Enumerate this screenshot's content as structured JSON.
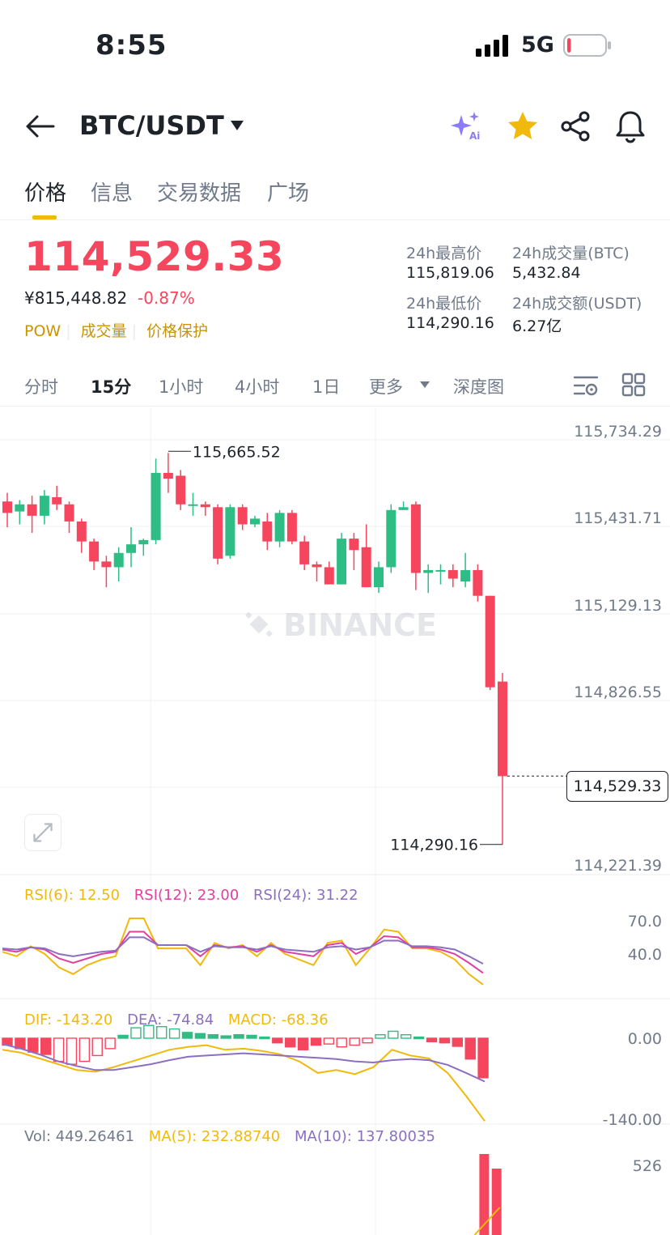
{
  "status_bar": {
    "time": "8:55",
    "network": "5G",
    "battery_level": 0.1
  },
  "header": {
    "pair": "BTC/USDT"
  },
  "tabs": [
    "价格",
    "信息",
    "交易数据",
    "广场"
  ],
  "price": {
    "last": "114,529.33",
    "cny": "¥815,448.82",
    "change": "-0.87%",
    "tags": [
      "POW",
      "成交量",
      "价格保护"
    ]
  },
  "stats": [
    {
      "label": "24h最高价",
      "value": "115,819.06"
    },
    {
      "label": "24h成交量(BTC)",
      "value": "5,432.84"
    },
    {
      "label": "24h最低价",
      "value": "114,290.16"
    },
    {
      "label": "24h成交额(USDT)",
      "value": "6.27亿"
    }
  ],
  "intervals": [
    "分时",
    "15分",
    "1小时",
    "4小时",
    "1日",
    "更多",
    "深度图"
  ],
  "chart_data": {
    "type": "candlestick",
    "watermark": "BINANCE",
    "price_axis": [
      "115,734.29",
      "115,431.71",
      "115,129.13",
      "114,826.55",
      "114,523.97",
      "114,221.39"
    ],
    "high_marker": "115,665.52",
    "low_marker": "114,290.16",
    "last_price_tag": "114,529.33",
    "candles": [
      [
        115490,
        115520,
        115400,
        115450
      ],
      [
        115455,
        115495,
        115410,
        115480
      ],
      [
        115480,
        115510,
        115380,
        115440
      ],
      [
        115440,
        115530,
        115410,
        115510
      ],
      [
        115505,
        115545,
        115460,
        115480
      ],
      [
        115480,
        115490,
        115380,
        115420
      ],
      [
        115420,
        115430,
        115310,
        115350
      ],
      [
        115350,
        115360,
        115250,
        115280
      ],
      [
        115280,
        115300,
        115190,
        115260
      ],
      [
        115260,
        115330,
        115210,
        115310
      ],
      [
        115310,
        115400,
        115260,
        115340
      ],
      [
        115340,
        115360,
        115300,
        115355
      ],
      [
        115355,
        115640,
        115340,
        115590
      ],
      [
        115590,
        115660,
        115520,
        115570
      ],
      [
        115580,
        115600,
        115460,
        115480
      ],
      [
        115480,
        115520,
        115440,
        115480
      ],
      [
        115480,
        115490,
        115440,
        115470
      ],
      [
        115470,
        115480,
        115270,
        115290
      ],
      [
        115300,
        115480,
        115290,
        115470
      ],
      [
        115470,
        115480,
        115390,
        115410
      ],
      [
        115410,
        115440,
        115400,
        115430
      ],
      [
        115420,
        115450,
        115320,
        115350
      ],
      [
        115350,
        115460,
        115330,
        115450
      ],
      [
        115450,
        115460,
        115340,
        115350
      ],
      [
        115350,
        115370,
        115250,
        115270
      ],
      [
        115270,
        115280,
        115210,
        115260
      ],
      [
        115260,
        115280,
        115200,
        115200
      ],
      [
        115200,
        115380,
        115200,
        115360
      ],
      [
        115360,
        115380,
        115250,
        115320
      ],
      [
        115330,
        115410,
        115190,
        115190
      ],
      [
        115190,
        115280,
        115170,
        115260
      ],
      [
        115260,
        115480,
        115240,
        115460
      ],
      [
        115460,
        115490,
        115470,
        115470
      ],
      [
        115480,
        115490,
        115180,
        115240
      ],
      [
        115240,
        115270,
        115170,
        115250
      ],
      [
        115250,
        115270,
        115200,
        115250
      ],
      [
        115250,
        115270,
        115190,
        115220
      ],
      [
        115210,
        115310,
        115190,
        115250
      ],
      [
        115250,
        115270,
        115140,
        115160
      ],
      [
        115160,
        115160,
        114830,
        114840
      ],
      [
        114860,
        114890,
        114290,
        114529
      ]
    ],
    "rsi": {
      "legend": [
        "RSI(6): 12.50",
        "RSI(12): 23.00",
        "RSI(24): 31.22"
      ],
      "axis": [
        "70.0",
        "40.0"
      ],
      "levels": [
        70,
        40
      ],
      "rsi6": [
        42,
        38,
        47,
        40,
        28,
        22,
        30,
        35,
        38,
        72,
        72,
        45,
        45,
        45,
        30,
        50,
        45,
        48,
        38,
        50,
        40,
        35,
        30,
        50,
        52,
        30,
        45,
        62,
        60,
        45,
        45,
        42,
        35,
        22,
        12.5
      ],
      "rsi12": [
        44,
        42,
        46,
        44,
        36,
        32,
        36,
        40,
        42,
        60,
        60,
        48,
        48,
        48,
        38,
        48,
        46,
        47,
        42,
        48,
        42,
        40,
        38,
        48,
        50,
        40,
        46,
        56,
        55,
        46,
        46,
        44,
        40,
        32,
        23
      ],
      "rsi24": [
        45,
        44,
        46,
        45,
        40,
        38,
        40,
        42,
        43,
        55,
        55,
        48,
        48,
        48,
        42,
        47,
        46,
        46,
        44,
        47,
        44,
        43,
        42,
        46,
        47,
        44,
        46,
        52,
        52,
        47,
        47,
        46,
        44,
        38,
        31.22
      ]
    },
    "macd": {
      "legend": [
        "DIF: -143.20",
        "DEA: -74.84",
        "MACD: -68.36"
      ],
      "axis": [
        "0.00",
        "-140.00"
      ],
      "hist": [
        -12,
        -18,
        -24,
        -28,
        -40,
        -45,
        -40,
        -30,
        -18,
        5,
        18,
        22,
        20,
        16,
        10,
        8,
        6,
        4,
        6,
        5,
        2,
        -8,
        -15,
        -20,
        -12,
        -10,
        -15,
        -12,
        -8,
        6,
        12,
        6,
        2,
        -6,
        -8,
        -14,
        -36,
        -68.36
      ],
      "dif": [
        -20,
        -25,
        -35,
        -45,
        -55,
        -58,
        -50,
        -40,
        -30,
        -20,
        -15,
        -12,
        -20,
        -18,
        -22,
        -28,
        -40,
        -60,
        -55,
        -62,
        -50,
        -20,
        -30,
        -35,
        -60,
        -100,
        -143.2
      ],
      "dea": [
        -10,
        -18,
        -28,
        -40,
        -48,
        -55,
        -55,
        -50,
        -45,
        -38,
        -32,
        -30,
        -28,
        -26,
        -28,
        -30,
        -32,
        -34,
        -36,
        -40,
        -42,
        -38,
        -36,
        -38,
        -46,
        -60,
        -74.84
      ]
    },
    "volume": {
      "legend": [
        "Vol: 449.26461",
        "MA(5): 232.88740",
        "MA(10): 137.80035"
      ],
      "axis": [
        "526"
      ]
    }
  }
}
